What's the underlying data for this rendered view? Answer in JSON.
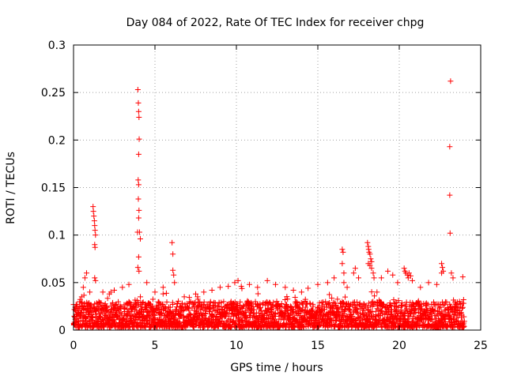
{
  "chart_data": {
    "type": "scatter",
    "title": "Day 084 of 2022, Rate Of TEC Index for receiver chpg",
    "xlabel": "GPS time / hours",
    "ylabel": "ROTI / TECUs",
    "xlim": [
      0,
      25
    ],
    "ylim": [
      0,
      0.3
    ],
    "xticks": [
      0,
      5,
      10,
      15,
      20,
      25
    ],
    "xtick_labels": [
      "0",
      "5",
      "10",
      "15",
      "20",
      "25"
    ],
    "yticks": [
      0,
      0.05,
      0.1,
      0.15,
      0.2,
      0.25,
      0.3
    ],
    "ytick_labels": [
      "0",
      "0.05",
      "0.1",
      "0.15",
      "0.2",
      "0.25",
      "0.3"
    ],
    "grid": true,
    "marker": "+",
    "color": "#ff0000",
    "series": [
      {
        "name": "ROTI",
        "points": [
          [
            0.3,
            0.02
          ],
          [
            0.5,
            0.035
          ],
          [
            0.6,
            0.045
          ],
          [
            0.7,
            0.055
          ],
          [
            0.8,
            0.06
          ],
          [
            1.0,
            0.04
          ],
          [
            1.2,
            0.13
          ],
          [
            1.22,
            0.125
          ],
          [
            1.25,
            0.12
          ],
          [
            1.28,
            0.115
          ],
          [
            1.3,
            0.11
          ],
          [
            1.32,
            0.105
          ],
          [
            1.35,
            0.1
          ],
          [
            1.3,
            0.09
          ],
          [
            1.32,
            0.087
          ],
          [
            1.3,
            0.055
          ],
          [
            1.35,
            0.052
          ],
          [
            1.8,
            0.04
          ],
          [
            2.2,
            0.038
          ],
          [
            2.5,
            0.042
          ],
          [
            3.0,
            0.045
          ],
          [
            3.4,
            0.048
          ],
          [
            3.95,
            0.253
          ],
          [
            3.98,
            0.239
          ],
          [
            4.0,
            0.23
          ],
          [
            4.02,
            0.224
          ],
          [
            4.03,
            0.201
          ],
          [
            4.0,
            0.185
          ],
          [
            3.97,
            0.158
          ],
          [
            4.0,
            0.153
          ],
          [
            3.98,
            0.138
          ],
          [
            4.02,
            0.126
          ],
          [
            4.0,
            0.118
          ],
          [
            4.05,
            0.103
          ],
          [
            3.93,
            0.103
          ],
          [
            4.1,
            0.096
          ],
          [
            4.0,
            0.077
          ],
          [
            3.95,
            0.066
          ],
          [
            4.02,
            0.062
          ],
          [
            4.5,
            0.05
          ],
          [
            5.0,
            0.04
          ],
          [
            5.5,
            0.045
          ],
          [
            6.05,
            0.092
          ],
          [
            6.1,
            0.08
          ],
          [
            6.1,
            0.063
          ],
          [
            6.15,
            0.058
          ],
          [
            6.2,
            0.05
          ],
          [
            6.8,
            0.035
          ],
          [
            7.5,
            0.038
          ],
          [
            8.0,
            0.04
          ],
          [
            8.5,
            0.042
          ],
          [
            9.0,
            0.045
          ],
          [
            9.5,
            0.046
          ],
          [
            9.9,
            0.05
          ],
          [
            10.1,
            0.052
          ],
          [
            10.3,
            0.046
          ],
          [
            10.8,
            0.048
          ],
          [
            11.3,
            0.045
          ],
          [
            11.9,
            0.052
          ],
          [
            12.4,
            0.048
          ],
          [
            13.0,
            0.045
          ],
          [
            13.5,
            0.042
          ],
          [
            14.0,
            0.04
          ],
          [
            14.4,
            0.044
          ],
          [
            15.0,
            0.048
          ],
          [
            15.6,
            0.05
          ],
          [
            16.0,
            0.055
          ],
          [
            16.5,
            0.085
          ],
          [
            16.55,
            0.082
          ],
          [
            16.5,
            0.07
          ],
          [
            16.6,
            0.06
          ],
          [
            16.6,
            0.05
          ],
          [
            16.8,
            0.045
          ],
          [
            17.2,
            0.06
          ],
          [
            17.3,
            0.065
          ],
          [
            17.5,
            0.055
          ],
          [
            18.05,
            0.092
          ],
          [
            18.1,
            0.088
          ],
          [
            18.12,
            0.085
          ],
          [
            18.15,
            0.082
          ],
          [
            18.2,
            0.08
          ],
          [
            18.25,
            0.075
          ],
          [
            18.3,
            0.072
          ],
          [
            18.1,
            0.07
          ],
          [
            18.2,
            0.068
          ],
          [
            18.3,
            0.065
          ],
          [
            18.4,
            0.06
          ],
          [
            18.45,
            0.055
          ],
          [
            18.9,
            0.055
          ],
          [
            19.3,
            0.062
          ],
          [
            19.6,
            0.058
          ],
          [
            19.9,
            0.05
          ],
          [
            20.3,
            0.065
          ],
          [
            20.35,
            0.062
          ],
          [
            20.4,
            0.06
          ],
          [
            20.5,
            0.058
          ],
          [
            20.55,
            0.055
          ],
          [
            20.6,
            0.06
          ],
          [
            20.7,
            0.057
          ],
          [
            20.8,
            0.052
          ],
          [
            21.3,
            0.045
          ],
          [
            21.8,
            0.05
          ],
          [
            22.3,
            0.048
          ],
          [
            22.6,
            0.07
          ],
          [
            22.65,
            0.066
          ],
          [
            22.7,
            0.062
          ],
          [
            22.6,
            0.06
          ],
          [
            23.15,
            0.262
          ],
          [
            23.1,
            0.193
          ],
          [
            23.1,
            0.142
          ],
          [
            23.12,
            0.102
          ],
          [
            23.2,
            0.06
          ],
          [
            23.3,
            0.055
          ],
          [
            23.9,
            0.056
          ],
          [
            23.7,
            0.03
          ],
          [
            23.95,
            0.032
          ]
        ],
        "dense_band": {
          "x_range": [
            0,
            24
          ],
          "y_range": [
            0.003,
            0.03
          ]
        }
      }
    ]
  }
}
